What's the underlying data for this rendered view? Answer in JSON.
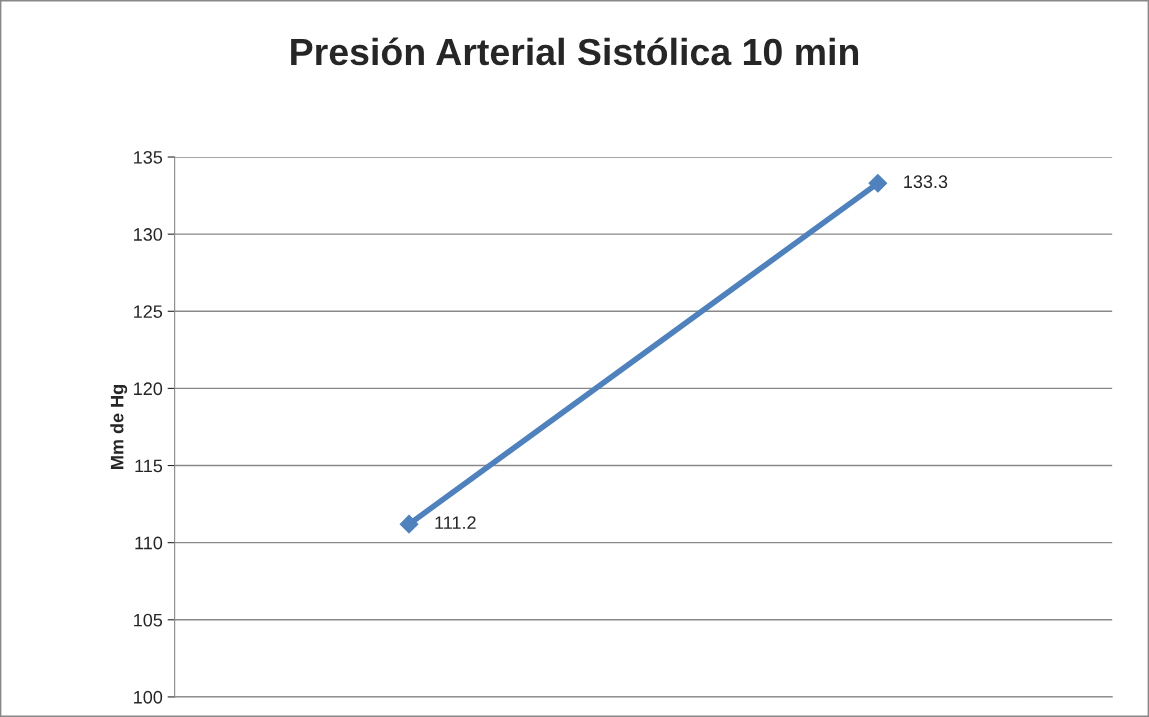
{
  "chart_data": {
    "type": "line",
    "title": "Presión Arterial Sistólica 10 min",
    "ylabel": "Mm de Hg",
    "categories": [
      null,
      null
    ],
    "series": [
      {
        "color": "#4f81bd",
        "values": [
          111.2,
          133.3
        ]
      }
    ],
    "ylim": [
      100,
      135
    ],
    "yticks": [
      100,
      105,
      110,
      115,
      120,
      125,
      130,
      135
    ],
    "grid": "y",
    "marker": "diamond",
    "line_style": "solid",
    "data_labels": true,
    "tick_labels": "y"
  }
}
